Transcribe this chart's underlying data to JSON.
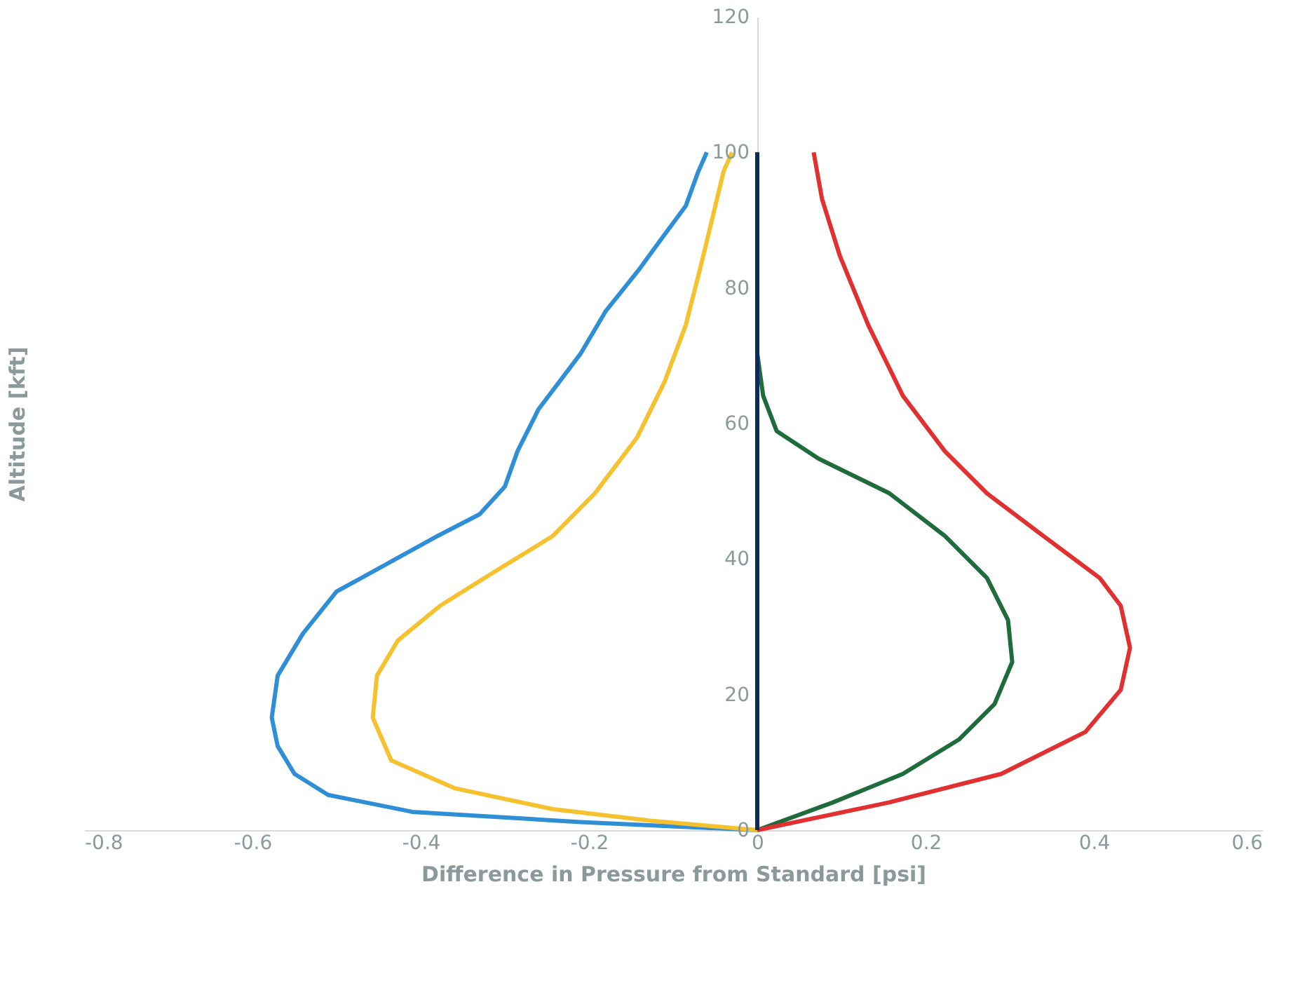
{
  "chart_data": {
    "type": "line",
    "xlabel": "Difference in Pressure from Standard [psi]",
    "ylabel": "Altitude [kft]",
    "xlim": [
      -0.8,
      0.6
    ],
    "xticks": [
      -0.8,
      -0.6,
      -0.4,
      -0.2,
      0,
      0.2,
      0.4,
      0.6
    ],
    "ylim": [
      0,
      120
    ],
    "yticks": [
      0,
      20,
      40,
      60,
      80,
      100,
      120
    ],
    "grid": false,
    "legend": false,
    "marker": "none",
    "line_style": "solid",
    "series": [
      {
        "color": "#2e8fd6",
        "x": [
          0,
          -0.21,
          -0.41,
          -0.51,
          -0.55,
          -0.57,
          -0.577,
          -0.57,
          -0.54,
          -0.5,
          -0.44,
          -0.38,
          -0.33,
          -0.3,
          -0.285,
          -0.26,
          -0.235,
          -0.21,
          -0.18,
          -0.14,
          -0.11,
          -0.085,
          -0.07,
          -0.06
        ],
        "values": [
          0,
          1.2,
          2.7,
          5.2,
          8.3,
          12.4,
          16.6,
          22.8,
          29,
          35.2,
          39.3,
          43.4,
          46.6,
          50.7,
          55.9,
          62.1,
          66.2,
          70.3,
          76.6,
          82.8,
          87.9,
          92.1,
          97.2,
          100
        ]
      },
      {
        "color": "#f5c12e",
        "x": [
          0,
          -0.127,
          -0.243,
          -0.36,
          -0.435,
          -0.457,
          -0.452,
          -0.427,
          -0.377,
          -0.31,
          -0.243,
          -0.193,
          -0.143,
          -0.11,
          -0.085,
          -0.068,
          -0.052,
          -0.04,
          -0.03
        ],
        "values": [
          0,
          1.4,
          3.1,
          6.2,
          10.3,
          16.6,
          22.8,
          28,
          33.1,
          38.3,
          43.4,
          49.7,
          57.9,
          66.2,
          74.5,
          82.8,
          91,
          97.2,
          100
        ]
      },
      {
        "color": "#1e6b3c",
        "x": [
          0,
          0.09,
          0.173,
          0.24,
          0.282,
          0.303,
          0.298,
          0.273,
          0.223,
          0.157,
          0.073,
          0.023,
          0.007,
          0,
          0
        ],
        "values": [
          0,
          4.1,
          8.3,
          13.4,
          18.6,
          24.8,
          31,
          37.2,
          43.4,
          49.7,
          54.8,
          58.9,
          64.1,
          70.3,
          100
        ]
      },
      {
        "color": "#e03030",
        "x": [
          0,
          0.157,
          0.29,
          0.39,
          0.432,
          0.443,
          0.432,
          0.407,
          0.34,
          0.273,
          0.223,
          0.173,
          0.132,
          0.098,
          0.077,
          0.067
        ],
        "values": [
          0,
          4.1,
          8.3,
          14.5,
          20.7,
          26.9,
          33.1,
          37.2,
          43.4,
          49.7,
          55.9,
          64.1,
          74.5,
          84.8,
          93.1,
          100
        ]
      },
      {
        "color": "#0c2a5a",
        "x": [
          0,
          0
        ],
        "values": [
          0,
          100
        ]
      }
    ]
  }
}
